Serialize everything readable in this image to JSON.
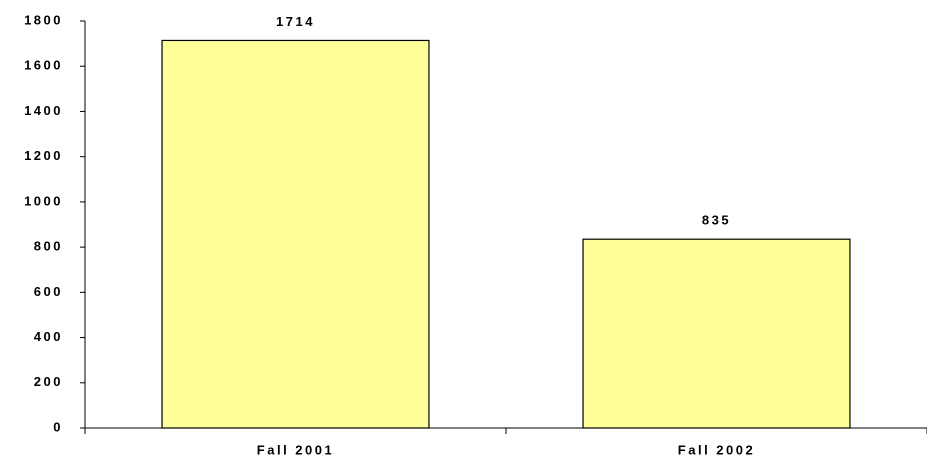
{
  "chart_data": {
    "type": "bar",
    "categories": [
      "Fall 2001",
      "Fall 2002"
    ],
    "values": [
      1714,
      835
    ],
    "color": "#ffff99",
    "ylim": [
      0,
      1800
    ],
    "yticks": [
      0,
      200,
      400,
      600,
      800,
      1000,
      1200,
      1400,
      1600,
      1800
    ],
    "grid": false
  }
}
